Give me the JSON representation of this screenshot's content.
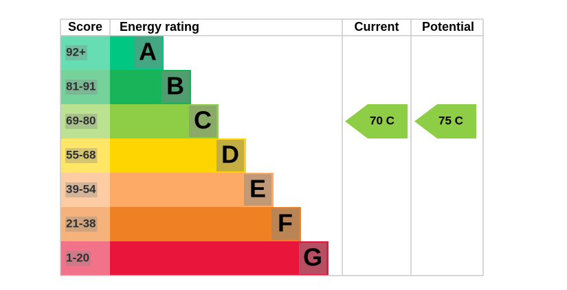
{
  "header": {
    "score": "Score",
    "energy_rating": "Energy rating",
    "current": "Current",
    "potential": "Potential"
  },
  "bands": [
    {
      "score": "92+",
      "letter": "A",
      "color": "#00c781"
    },
    {
      "score": "81-91",
      "letter": "B",
      "color": "#19b459"
    },
    {
      "score": "69-80",
      "letter": "C",
      "color": "#8dce46"
    },
    {
      "score": "55-68",
      "letter": "D",
      "color": "#ffd500"
    },
    {
      "score": "39-54",
      "letter": "E",
      "color": "#fcaa65"
    },
    {
      "score": "21-38",
      "letter": "F",
      "color": "#ef8023"
    },
    {
      "score": "1-20",
      "letter": "G",
      "color": "#e9153b"
    }
  ],
  "current": {
    "label": "70 C",
    "color": "#8dce46"
  },
  "potential": {
    "label": "75 C",
    "color": "#8dce46"
  }
}
